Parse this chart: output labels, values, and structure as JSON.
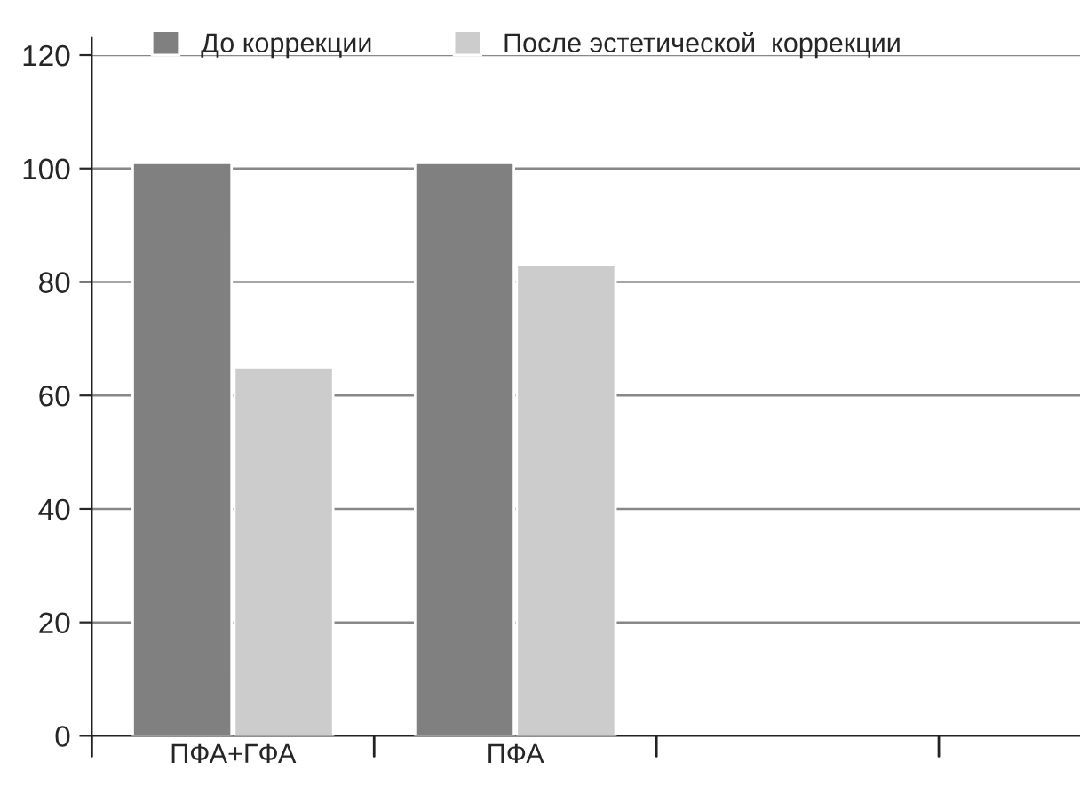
{
  "chart_data": {
    "type": "bar",
    "categories": [
      "ПФА+ГФА",
      "ПФА",
      null
    ],
    "series": [
      {
        "name": "До коррекции",
        "color": "#808080",
        "values": [
          101,
          101,
          null
        ]
      },
      {
        "name": "После эстетической  коррекции",
        "color": "#cccccc",
        "values": [
          65,
          83,
          null
        ]
      }
    ],
    "ylim": [
      0,
      120
    ],
    "yticks": [
      0,
      20,
      40,
      60,
      80,
      100,
      120
    ],
    "grid": "y",
    "legend": "top"
  }
}
